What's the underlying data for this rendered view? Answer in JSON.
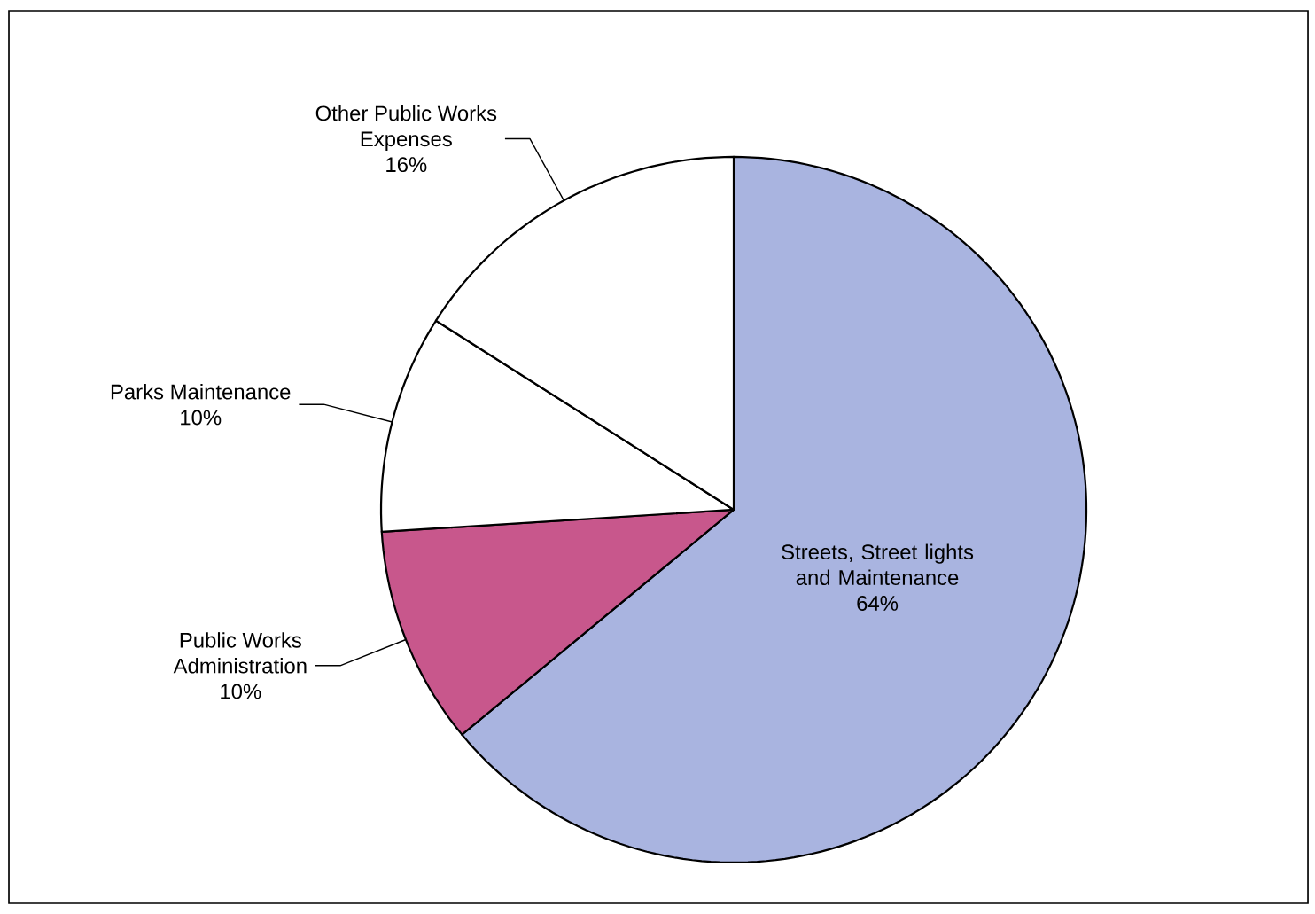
{
  "chart_data": {
    "type": "pie",
    "categories": [
      "Streets, Street lights and Maintenance",
      "Public Works Administration",
      "Parks Maintenance",
      "Other Public Works Expenses"
    ],
    "values": [
      64,
      10,
      10,
      16
    ],
    "colors": [
      "#a9b4e0",
      "#c8578c",
      "#ffffff",
      "#ffffff"
    ],
    "value_labels": [
      "64%",
      "10%",
      "10%",
      "16%"
    ]
  }
}
